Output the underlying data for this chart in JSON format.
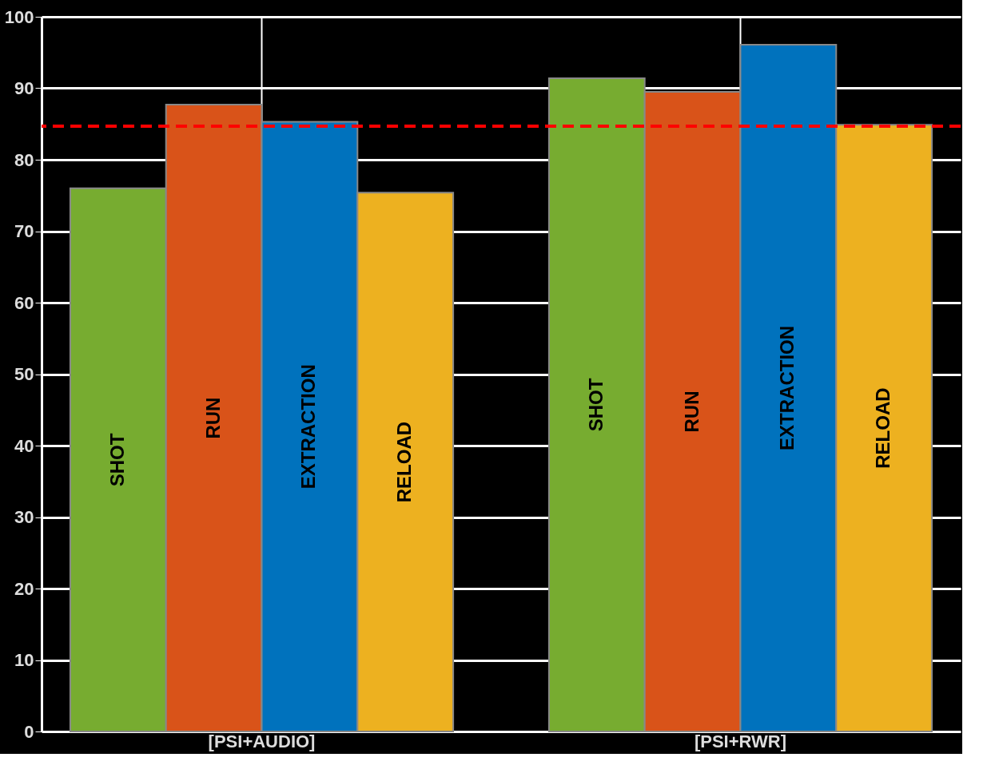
{
  "chart_data": {
    "type": "bar",
    "categories": [
      "[PSI+AUDIO]",
      "[PSI+RWR]"
    ],
    "series": [
      {
        "name": "SHOT",
        "color": "#77ac30",
        "values": [
          76.0,
          91.4
        ]
      },
      {
        "name": "RUN",
        "color": "#d95319",
        "values": [
          87.7,
          89.5
        ]
      },
      {
        "name": "EXTRACTION",
        "color": "#0072bd",
        "values": [
          85.3,
          96.1
        ]
      },
      {
        "name": "RELOAD",
        "color": "#edb120",
        "values": [
          75.4,
          84.9
        ]
      }
    ],
    "ylim": [
      0,
      100
    ],
    "yticks": [
      0,
      10,
      20,
      30,
      40,
      50,
      60,
      70,
      80,
      90,
      100
    ],
    "grid": true,
    "legend": false,
    "ref_lines": [
      {
        "axis": "y",
        "value": 84.7,
        "color": "#ff0000",
        "line_style": "dashed"
      }
    ]
  }
}
